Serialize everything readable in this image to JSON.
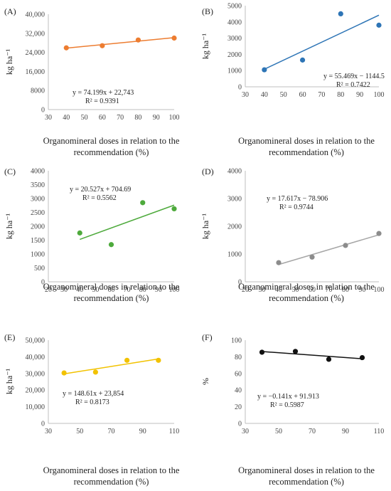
{
  "chart_data": [
    {
      "type": "scatter",
      "panel_label": "(A)",
      "x": [
        40,
        60,
        80,
        100
      ],
      "y": [
        25900,
        26800,
        29200,
        30000
      ],
      "point_color": "#ED7D31",
      "trend_color": "#ED7D31",
      "equation": "y = 74.199x + 22,743",
      "r2": "R² = 0.9391",
      "xlim": [
        30,
        100
      ],
      "ylim": [
        0,
        40000
      ],
      "xticks": [
        "30",
        "40",
        "50",
        "60",
        "70",
        "80",
        "90",
        "100"
      ],
      "yticks": [
        "0",
        "8000",
        "16,000",
        "24,000",
        "32,000",
        "40,000"
      ],
      "ylabel": "kg ha⁻¹",
      "xlabel_line1": "Organomineral doses in relation to the",
      "xlabel_line2": "recommendation (%)"
    },
    {
      "type": "scatter",
      "panel_label": "(B)",
      "x": [
        40,
        60,
        80,
        100
      ],
      "y": [
        1050,
        1650,
        4500,
        3800
      ],
      "point_color": "#2E75B6",
      "trend_color": "#2E75B6",
      "equation": "y = 55.469x − 1144.5",
      "r2": "R² = 0.7422",
      "xlim": [
        30,
        100
      ],
      "ylim": [
        0,
        5000
      ],
      "xticks": [
        "30",
        "40",
        "50",
        "60",
        "70",
        "80",
        "90",
        "100"
      ],
      "yticks": [
        "0",
        "1000",
        "2000",
        "3000",
        "4000",
        "5000"
      ],
      "ylabel": "kg ha⁻¹",
      "xlabel_line1": "Organomineral doses in relation to the",
      "xlabel_line2": "recommendation (%)"
    },
    {
      "type": "scatter",
      "panel_label": "(C)",
      "x": [
        40,
        60,
        80,
        100
      ],
      "y": [
        1760,
        1340,
        2850,
        2630
      ],
      "point_color": "#4EAA3C",
      "trend_color": "#4EAA3C",
      "equation": "y = 20.527x + 704.69",
      "r2": "R² = 0.5562",
      "xlim": [
        20,
        100
      ],
      "ylim": [
        0,
        4000
      ],
      "xticks": [
        "20",
        "30",
        "40",
        "50",
        "60",
        "70",
        "80",
        "90",
        "100"
      ],
      "yticks": [
        "0",
        "500",
        "1000",
        "1500",
        "2000",
        "2500",
        "3000",
        "3500",
        "4000"
      ],
      "ylabel": "kg ha⁻¹",
      "xlabel_line1": "Organomineral doses in relation to the",
      "xlabel_line2": "recommendation (%)"
    },
    {
      "type": "scatter",
      "panel_label": "(D)",
      "x": [
        40,
        60,
        80,
        100
      ],
      "y": [
        690,
        890,
        1310,
        1740
      ],
      "point_color": "#8C8C8C",
      "trend_color": "#A6A6A6",
      "equation": "y = 17.617x − 78.906",
      "r2": "R² = 0.9744",
      "xlim": [
        20,
        100
      ],
      "ylim": [
        0,
        4000
      ],
      "xticks": [
        "20",
        "30",
        "40",
        "50",
        "60",
        "70",
        "80",
        "90",
        "100"
      ],
      "yticks": [
        "0",
        "1000",
        "2000",
        "3000",
        "4000"
      ],
      "ylabel": "kg ha⁻¹",
      "xlabel_line1": "Organomineral doses in relation to the",
      "xlabel_line2": "recommendation (%)"
    },
    {
      "type": "scatter",
      "panel_label": "(E)",
      "x": [
        40,
        60,
        80,
        100
      ],
      "y": [
        30300,
        30800,
        37900,
        37900
      ],
      "point_color": "#F2C200",
      "trend_color": "#F2C200",
      "equation": "y = 148.61x + 23,854",
      "r2": "R² = 0.8173",
      "xlim": [
        30,
        110
      ],
      "ylim": [
        0,
        50000
      ],
      "xticks": [
        "30",
        "50",
        "70",
        "90",
        "110"
      ],
      "yticks": [
        "0",
        "10,000",
        "20,000",
        "30,000",
        "40,000",
        "50,000"
      ],
      "ylabel": "kg ha⁻¹",
      "xlabel_line1": "Organomineral doses in relation to the",
      "xlabel_line2": "recommendation (%)"
    },
    {
      "type": "scatter",
      "panel_label": "(F)",
      "x": [
        40,
        60,
        80,
        100
      ],
      "y": [
        85.5,
        86.5,
        77,
        79
      ],
      "point_color": "#111111",
      "trend_color": "#111111",
      "equation": "y = −0.141x + 91.913",
      "r2": "R² = 0.5987",
      "xlim": [
        30,
        110
      ],
      "ylim": [
        0,
        100
      ],
      "xticks": [
        "30",
        "50",
        "70",
        "90",
        "110"
      ],
      "yticks": [
        "0",
        "20",
        "40",
        "60",
        "80",
        "100"
      ],
      "ylabel": "%",
      "xlabel_line1": "Organomineral doses in relation to the",
      "xlabel_line2": "recommendation (%)"
    }
  ]
}
